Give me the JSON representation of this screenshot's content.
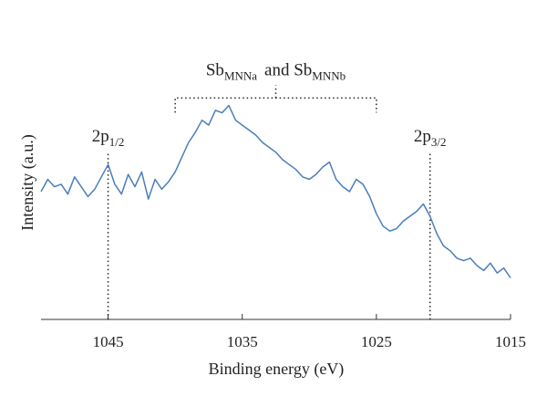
{
  "chart_data": {
    "type": "line",
    "xlabel": "Binding energy (eV)",
    "ylabel": "Intensity (a.u.)",
    "x_reversed": true,
    "xlim": [
      1050,
      1015
    ],
    "xticks": [
      1045,
      1035,
      1025,
      1015
    ],
    "tick_labels": [
      "1045",
      "1035",
      "1025",
      "1015"
    ],
    "ylim": [
      0,
      100
    ],
    "grid": false,
    "series": [
      {
        "color": "#4a7ebb",
        "x": [
          1050.0,
          1049.5,
          1049.0,
          1048.5,
          1048.0,
          1047.5,
          1047.0,
          1046.5,
          1046.0,
          1045.5,
          1045.0,
          1044.5,
          1044.0,
          1043.5,
          1043.0,
          1042.5,
          1042.0,
          1041.5,
          1041.0,
          1040.5,
          1040.0,
          1039.5,
          1039.0,
          1038.5,
          1038.0,
          1037.5,
          1037.0,
          1036.5,
          1036.0,
          1035.5,
          1035.0,
          1034.5,
          1034.0,
          1033.5,
          1033.0,
          1032.5,
          1032.0,
          1031.5,
          1031.0,
          1030.5,
          1030.0,
          1029.5,
          1029.0,
          1028.5,
          1028.0,
          1027.5,
          1027.0,
          1026.5,
          1026.0,
          1025.5,
          1025.0,
          1024.5,
          1024.0,
          1023.5,
          1023.0,
          1022.5,
          1022.0,
          1021.5,
          1021.0,
          1020.5,
          1020.0,
          1019.5,
          1019.0,
          1018.5,
          1018.0,
          1017.5,
          1017.0,
          1016.5,
          1016.0,
          1015.5,
          1015.0
        ],
        "y": [
          50,
          55,
          52,
          53,
          49,
          56,
          52,
          48,
          51,
          56,
          61,
          53,
          49,
          57,
          52,
          58,
          47,
          55,
          51,
          54,
          58,
          64,
          70,
          74,
          79,
          77,
          83,
          82,
          85,
          79,
          77,
          75,
          73,
          70,
          68,
          66,
          63,
          61,
          59,
          56,
          55,
          57,
          60,
          62,
          55,
          52,
          50,
          55,
          53,
          48,
          41,
          36,
          34,
          35,
          38,
          40,
          42,
          45,
          40,
          33,
          28,
          26,
          23,
          22,
          23,
          20,
          18,
          21,
          17,
          19,
          15
        ]
      }
    ],
    "annotations": [
      {
        "kind": "vline",
        "x": 1045,
        "y_top": 72
      },
      {
        "kind": "vline",
        "x": 1021,
        "y_top": 72
      },
      {
        "kind": "bracket",
        "x1": 1040,
        "x2": 1025,
        "y": 88
      },
      {
        "kind": "text",
        "main": "2p",
        "sub": "1/2",
        "x": 1045,
        "y": 74
      },
      {
        "kind": "text",
        "main": "2p",
        "sub": "3/2",
        "x": 1021,
        "y": 74
      },
      {
        "kind": "text",
        "main": "Sb",
        "sub": "MNNa",
        "main2": "and Sb",
        "sub2": "MNNb",
        "x": 1032.5,
        "y": 98
      }
    ]
  }
}
